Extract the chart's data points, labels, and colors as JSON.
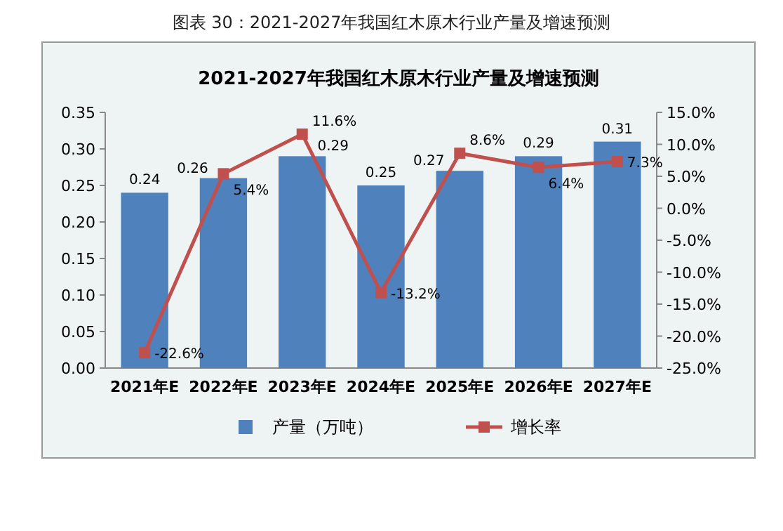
{
  "chart_data": {
    "type": "bar",
    "title": "2021-2027年我国红木原木行业产量及增速预测",
    "annotations": [
      "图表 30：2021-2027年我国红木原木行业产量及增速预测"
    ],
    "categories": [
      "2021年E",
      "2022年E",
      "2023年E",
      "2024年E",
      "2025年E",
      "2026年E",
      "2027年E"
    ],
    "series": [
      {
        "name": "产量（万吨）",
        "color": "#4f81bd",
        "values": [
          0.24,
          0.26,
          0.29,
          0.25,
          0.27,
          0.29,
          0.31
        ],
        "value_labels": [
          "0.24",
          "0.26",
          "0.29",
          "0.25",
          "0.27",
          "0.29",
          "0.31"
        ]
      },
      {
        "name": "增长率",
        "type": "line",
        "axis": "y2",
        "color": "#c0504d",
        "marker": "square",
        "values": [
          -22.6,
          5.4,
          11.6,
          -13.2,
          8.6,
          6.4,
          7.3
        ],
        "value_labels": [
          "-22.6%",
          "5.4%",
          "11.6%",
          "-13.2%",
          "8.6%",
          "6.4%",
          "7.3%"
        ]
      }
    ],
    "ylim": [
      0,
      0.35
    ],
    "yticks": [
      {
        "value": 0,
        "label": "0.00"
      },
      {
        "value": 0.05,
        "label": "0.05"
      },
      {
        "value": 0.1,
        "label": "0.10"
      },
      {
        "value": 0.15,
        "label": "0.15"
      },
      {
        "value": 0.2,
        "label": "0.20"
      },
      {
        "value": 0.25,
        "label": "0.25"
      },
      {
        "value": 0.3,
        "label": "0.30"
      },
      {
        "value": 0.35,
        "label": "0.35"
      }
    ],
    "y2lim": [
      -25,
      15
    ],
    "y2ticks": [
      {
        "value": -25,
        "label": "-25.0%"
      },
      {
        "value": -20,
        "label": "-20.0%"
      },
      {
        "value": -15,
        "label": "-15.0%"
      },
      {
        "value": -10,
        "label": "-10.0%"
      },
      {
        "value": -5,
        "label": "-5.0%"
      },
      {
        "value": 0,
        "label": "0.0%"
      },
      {
        "value": 5,
        "label": "5.0%"
      },
      {
        "value": 10,
        "label": "10.0%"
      },
      {
        "value": 15,
        "label": "15.0%"
      }
    ],
    "legend": "bottom",
    "grid": false
  }
}
